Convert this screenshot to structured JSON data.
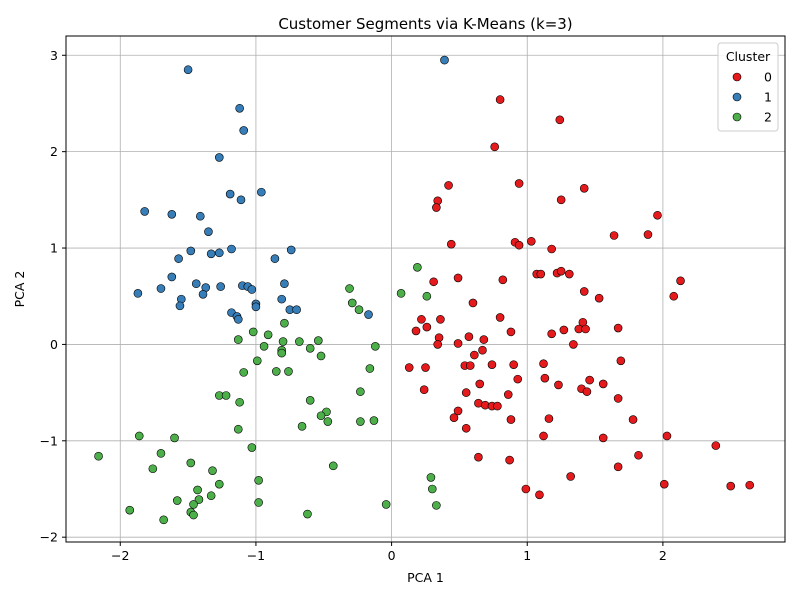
{
  "chart_data": {
    "type": "scatter",
    "title": "Customer Segments via K-Means (k=3)",
    "xlabel": "PCA 1",
    "ylabel": "PCA 2",
    "xlim": [
      -2.4,
      2.9
    ],
    "ylim": [
      -2.05,
      3.2
    ],
    "xticks": [
      -2,
      -1,
      0,
      1,
      2
    ],
    "yticks": [
      -2,
      -1,
      0,
      1,
      2,
      3
    ],
    "xtick_labels": [
      "−2",
      "−1",
      "0",
      "1",
      "2"
    ],
    "ytick_labels": [
      "−2",
      "−1",
      "0",
      "1",
      "2",
      "3"
    ],
    "grid": true,
    "legend": {
      "title": "Cluster",
      "placement": "top-right"
    },
    "series": [
      {
        "name": "0",
        "color": "#e41a1c",
        "points": [
          [
            0.8,
            2.54
          ],
          [
            1.24,
            2.33
          ],
          [
            0.76,
            2.05
          ],
          [
            0.94,
            1.67
          ],
          [
            0.42,
            1.65
          ],
          [
            1.42,
            1.62
          ],
          [
            0.34,
            1.49
          ],
          [
            1.25,
            1.5
          ],
          [
            0.33,
            1.42
          ],
          [
            1.96,
            1.34
          ],
          [
            1.64,
            1.13
          ],
          [
            1.89,
            1.14
          ],
          [
            0.44,
            1.04
          ],
          [
            0.91,
            1.06
          ],
          [
            0.94,
            1.03
          ],
          [
            1.03,
            1.07
          ],
          [
            1.18,
            0.99
          ],
          [
            1.07,
            0.73
          ],
          [
            1.1,
            0.73
          ],
          [
            1.22,
            0.74
          ],
          [
            1.25,
            0.76
          ],
          [
            1.31,
            0.73
          ],
          [
            0.82,
            0.67
          ],
          [
            0.31,
            0.65
          ],
          [
            0.49,
            0.69
          ],
          [
            2.13,
            0.66
          ],
          [
            1.42,
            0.55
          ],
          [
            2.08,
            0.5
          ],
          [
            1.53,
            0.48
          ],
          [
            0.6,
            0.43
          ],
          [
            0.8,
            0.28
          ],
          [
            0.36,
            0.26
          ],
          [
            0.22,
            0.26
          ],
          [
            1.41,
            0.23
          ],
          [
            0.26,
            0.18
          ],
          [
            0.18,
            0.14
          ],
          [
            0.88,
            0.13
          ],
          [
            1.27,
            0.15
          ],
          [
            1.38,
            0.16
          ],
          [
            1.43,
            0.16
          ],
          [
            1.67,
            0.17
          ],
          [
            1.18,
            0.11
          ],
          [
            0.57,
            0.08
          ],
          [
            0.35,
            0.07
          ],
          [
            0.68,
            0.05
          ],
          [
            0.49,
            0.01
          ],
          [
            0.34,
            0.0
          ],
          [
            1.34,
            0.0
          ],
          [
            0.67,
            -0.06
          ],
          [
            0.61,
            -0.11
          ],
          [
            1.69,
            -0.17
          ],
          [
            0.13,
            -0.24
          ],
          [
            0.25,
            -0.24
          ],
          [
            0.54,
            -0.22
          ],
          [
            0.58,
            -0.22
          ],
          [
            0.74,
            -0.21
          ],
          [
            0.9,
            -0.21
          ],
          [
            1.12,
            -0.2
          ],
          [
            0.93,
            -0.36
          ],
          [
            1.13,
            -0.35
          ],
          [
            1.46,
            -0.37
          ],
          [
            0.65,
            -0.41
          ],
          [
            1.23,
            -0.42
          ],
          [
            1.4,
            -0.46
          ],
          [
            1.56,
            -0.41
          ],
          [
            0.24,
            -0.47
          ],
          [
            1.44,
            -0.49
          ],
          [
            0.55,
            -0.5
          ],
          [
            0.86,
            -0.52
          ],
          [
            1.67,
            -0.56
          ],
          [
            0.64,
            -0.61
          ],
          [
            0.69,
            -0.63
          ],
          [
            0.74,
            -0.64
          ],
          [
            0.78,
            -0.64
          ],
          [
            0.49,
            -0.69
          ],
          [
            0.46,
            -0.76
          ],
          [
            0.88,
            -0.78
          ],
          [
            1.16,
            -0.77
          ],
          [
            1.78,
            -0.78
          ],
          [
            0.55,
            -0.87
          ],
          [
            1.12,
            -0.95
          ],
          [
            2.03,
            -0.95
          ],
          [
            1.56,
            -0.97
          ],
          [
            2.39,
            -1.05
          ],
          [
            0.64,
            -1.17
          ],
          [
            0.87,
            -1.2
          ],
          [
            1.82,
            -1.15
          ],
          [
            1.67,
            -1.27
          ],
          [
            1.32,
            -1.37
          ],
          [
            2.01,
            -1.45
          ],
          [
            2.5,
            -1.47
          ],
          [
            2.64,
            -1.46
          ],
          [
            0.99,
            -1.5
          ],
          [
            1.09,
            -1.56
          ]
        ]
      },
      {
        "name": "1",
        "color": "#377eb8",
        "points": [
          [
            0.39,
            2.95
          ],
          [
            -1.5,
            2.85
          ],
          [
            -1.12,
            2.45
          ],
          [
            -1.09,
            2.22
          ],
          [
            -1.27,
            1.94
          ],
          [
            -0.96,
            1.58
          ],
          [
            -1.19,
            1.56
          ],
          [
            -1.11,
            1.5
          ],
          [
            -1.82,
            1.38
          ],
          [
            -1.62,
            1.35
          ],
          [
            -1.41,
            1.33
          ],
          [
            -1.35,
            1.17
          ],
          [
            -1.18,
            0.99
          ],
          [
            -1.48,
            0.97
          ],
          [
            -1.33,
            0.94
          ],
          [
            -1.27,
            0.95
          ],
          [
            -0.74,
            0.98
          ],
          [
            -1.57,
            0.89
          ],
          [
            -0.86,
            0.89
          ],
          [
            -1.62,
            0.7
          ],
          [
            -0.79,
            0.63
          ],
          [
            -1.1,
            0.61
          ],
          [
            -1.06,
            0.6
          ],
          [
            -1.7,
            0.58
          ],
          [
            -1.37,
            0.59
          ],
          [
            -1.44,
            0.63
          ],
          [
            -1.26,
            0.6
          ],
          [
            -1.03,
            0.57
          ],
          [
            -1.87,
            0.53
          ],
          [
            -1.39,
            0.52
          ],
          [
            -1.55,
            0.47
          ],
          [
            -0.81,
            0.47
          ],
          [
            -1.0,
            0.42
          ],
          [
            -1.0,
            0.39
          ],
          [
            -1.56,
            0.4
          ],
          [
            -0.75,
            0.36
          ],
          [
            -0.7,
            0.36
          ],
          [
            -1.18,
            0.33
          ],
          [
            -0.17,
            0.31
          ],
          [
            -1.14,
            0.29
          ],
          [
            -1.13,
            0.26
          ]
        ]
      },
      {
        "name": "2",
        "color": "#4daf4a",
        "points": [
          [
            0.19,
            0.8
          ],
          [
            -0.31,
            0.58
          ],
          [
            0.07,
            0.53
          ],
          [
            0.26,
            0.5
          ],
          [
            -0.29,
            0.43
          ],
          [
            -0.24,
            0.36
          ],
          [
            -0.79,
            0.22
          ],
          [
            -1.02,
            0.13
          ],
          [
            -0.91,
            0.1
          ],
          [
            -0.8,
            0.03
          ],
          [
            -0.68,
            0.03
          ],
          [
            -0.54,
            0.04
          ],
          [
            -1.13,
            0.05
          ],
          [
            -0.94,
            -0.02
          ],
          [
            -0.12,
            -0.02
          ],
          [
            -0.6,
            -0.04
          ],
          [
            -0.81,
            -0.06
          ],
          [
            -0.81,
            -0.09
          ],
          [
            -0.52,
            -0.12
          ],
          [
            -0.99,
            -0.17
          ],
          [
            -0.16,
            -0.25
          ],
          [
            -0.85,
            -0.28
          ],
          [
            -0.76,
            -0.28
          ],
          [
            -1.09,
            -0.29
          ],
          [
            -0.23,
            -0.49
          ],
          [
            -1.27,
            -0.53
          ],
          [
            -1.22,
            -0.53
          ],
          [
            -0.6,
            -0.58
          ],
          [
            -1.12,
            -0.6
          ],
          [
            -0.48,
            -0.7
          ],
          [
            -0.52,
            -0.74
          ],
          [
            -0.47,
            -0.8
          ],
          [
            -0.23,
            -0.8
          ],
          [
            -0.13,
            -0.79
          ],
          [
            -0.66,
            -0.85
          ],
          [
            -1.13,
            -0.88
          ],
          [
            -1.86,
            -0.95
          ],
          [
            -1.6,
            -0.97
          ],
          [
            -1.03,
            -1.07
          ],
          [
            -1.7,
            -1.13
          ],
          [
            -2.16,
            -1.16
          ],
          [
            -1.48,
            -1.23
          ],
          [
            -0.43,
            -1.26
          ],
          [
            -1.76,
            -1.29
          ],
          [
            -1.32,
            -1.31
          ],
          [
            -0.98,
            -1.41
          ],
          [
            -1.27,
            -1.45
          ],
          [
            0.29,
            -1.38
          ],
          [
            -1.43,
            -1.51
          ],
          [
            0.3,
            -1.5
          ],
          [
            -1.33,
            -1.57
          ],
          [
            -1.58,
            -1.62
          ],
          [
            -1.42,
            -1.61
          ],
          [
            -0.98,
            -1.64
          ],
          [
            -0.04,
            -1.66
          ],
          [
            0.33,
            -1.67
          ],
          [
            -1.46,
            -1.66
          ],
          [
            -1.93,
            -1.72
          ],
          [
            -1.48,
            -1.74
          ],
          [
            -1.46,
            -1.77
          ],
          [
            -0.62,
            -1.76
          ],
          [
            -1.68,
            -1.82
          ]
        ]
      }
    ]
  }
}
